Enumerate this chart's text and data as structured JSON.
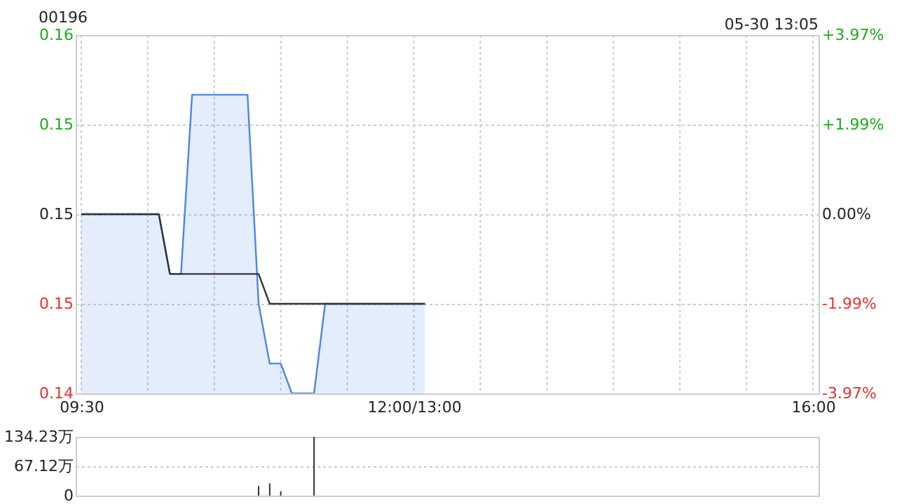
{
  "chart_data": [
    {
      "type": "line",
      "title": "00196",
      "annotations": [
        "05-30 13:05"
      ],
      "categories": [
        "09:30",
        null,
        null,
        null,
        null,
        null,
        null,
        null,
        null,
        null,
        null,
        null,
        null,
        null,
        null,
        null,
        null,
        null,
        null,
        null,
        null,
        null,
        null,
        null,
        null,
        null,
        null,
        null,
        null,
        null,
        "12:00/13:00",
        null,
        null,
        null,
        null,
        null,
        null,
        null,
        null,
        null,
        null,
        null,
        null,
        null,
        null,
        null,
        null,
        null,
        null,
        null,
        null,
        null,
        null,
        null,
        null,
        null,
        null,
        null,
        null,
        null,
        null,
        null,
        null,
        null,
        null,
        null,
        "16:00"
      ],
      "ylim": [
        0.145,
        0.157
      ],
      "yticks": [
        {
          "value": 0.157,
          "label": "0.16"
        },
        {
          "value": 0.154,
          "label": "0.15"
        },
        {
          "value": 0.151,
          "label": "0.15"
        },
        {
          "value": 0.148,
          "label": "0.15"
        },
        {
          "value": 0.145,
          "label": "0.14"
        }
      ],
      "y2lim": [
        -3.97,
        3.97
      ],
      "y2ticks": [
        {
          "value": 3.97,
          "label": "+3.97%"
        },
        {
          "value": 1.99,
          "label": "+1.99%"
        },
        {
          "value": 0,
          "label": "0.00%"
        },
        {
          "value": -1.99,
          "label": "-1.99%"
        },
        {
          "value": -3.97,
          "label": "-3.97%"
        }
      ],
      "grid": true,
      "series": [
        {
          "type": "area",
          "color": "#4a86e8",
          "values": [
            0.151,
            0.151,
            0.151,
            0.151,
            0.151,
            0.151,
            0.151,
            0.151,
            0.149,
            0.149,
            0.155,
            0.155,
            0.155,
            0.155,
            0.155,
            0.155,
            0.148,
            0.146,
            0.146,
            0.145,
            0.145,
            0.145,
            0.148,
            0.148,
            0.148,
            0.148,
            0.148,
            0.148,
            0.148,
            0.148,
            0.148,
            0.148,
            null,
            null,
            null,
            null,
            null,
            null,
            null,
            null,
            null,
            null,
            null,
            null,
            null,
            null,
            null,
            null,
            null,
            null,
            null,
            null,
            null,
            null,
            null,
            null,
            null,
            null,
            null,
            null,
            null,
            null,
            null,
            null,
            null,
            null,
            null
          ]
        },
        {
          "type": "line",
          "color": "#333333",
          "values": [
            0.151,
            0.151,
            0.151,
            0.151,
            0.151,
            0.151,
            0.151,
            0.151,
            0.149,
            0.149,
            0.149,
            0.149,
            0.149,
            0.149,
            0.149,
            0.149,
            0.149,
            0.148,
            0.148,
            0.148,
            0.148,
            0.148,
            0.148,
            0.148,
            0.148,
            0.148,
            0.148,
            0.148,
            0.148,
            0.148,
            0.148,
            0.148,
            null,
            null,
            null,
            null,
            null,
            null,
            null,
            null,
            null,
            null,
            null,
            null,
            null,
            null,
            null,
            null,
            null,
            null,
            null,
            null,
            null,
            null,
            null,
            null,
            null,
            null,
            null,
            null,
            null,
            null,
            null,
            null,
            null,
            null,
            null
          ]
        }
      ]
    },
    {
      "type": "bar",
      "color": "#333333",
      "categories": [
        null,
        null,
        null,
        null,
        null,
        null,
        null,
        null,
        null,
        null,
        null,
        null,
        null,
        null,
        null,
        null,
        null,
        null,
        null,
        null,
        null,
        null,
        null,
        null,
        null,
        null,
        null,
        null,
        null,
        null,
        null,
        null,
        null,
        null,
        null,
        null,
        null,
        null,
        null,
        null,
        null,
        null,
        null,
        null,
        null,
        null,
        null,
        null,
        null,
        null,
        null,
        null,
        null,
        null,
        null,
        null,
        null,
        null,
        null,
        null,
        null,
        null,
        null,
        null,
        null,
        null,
        null
      ],
      "values": [
        null,
        null,
        null,
        null,
        null,
        null,
        null,
        null,
        null,
        null,
        null,
        null,
        null,
        null,
        null,
        null,
        22,
        28,
        10,
        null,
        null,
        134.23,
        null,
        null,
        null,
        null,
        null,
        null,
        null,
        null,
        null,
        null,
        null,
        null,
        null,
        null,
        null,
        null,
        null,
        null,
        null,
        null,
        null,
        null,
        null,
        null,
        null,
        null,
        null,
        null,
        null,
        null,
        null,
        null,
        null,
        null,
        null,
        null,
        null,
        null,
        null,
        null,
        null,
        null,
        null,
        null,
        null
      ],
      "ylim": [
        0,
        134.23
      ],
      "yticks": [
        0,
        {
          "value": 67.12,
          "label": "67.12万"
        },
        {
          "value": 134.23,
          "label": "134.23万"
        }
      ],
      "grid": "y",
      "tick_labels": "y"
    }
  ]
}
